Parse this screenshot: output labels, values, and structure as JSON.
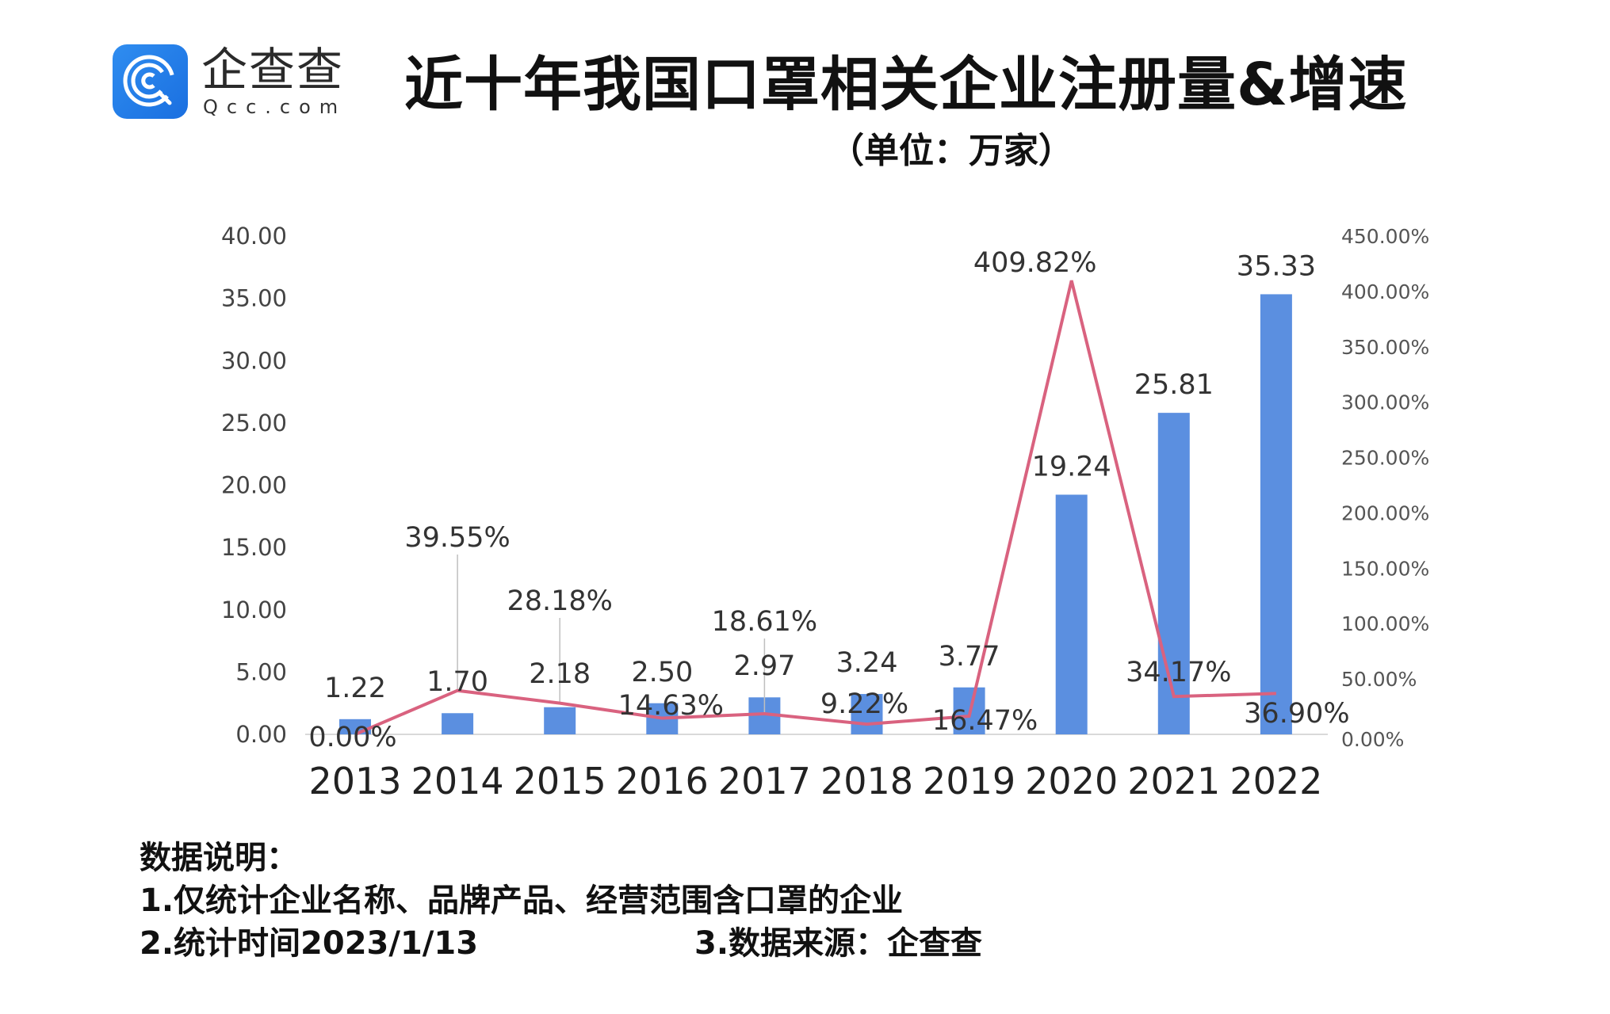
{
  "brand": {
    "name_cn": "企查查",
    "domain": "Qcc.com",
    "logo_icon": "qcc-logo-icon",
    "color": "#1f7ee8"
  },
  "header": {
    "title": "近十年我国口罩相关企业注册量&增速",
    "subtitle": "（单位：万家）"
  },
  "chart_data": {
    "type": "bar+line",
    "title": "近十年我国口罩相关企业注册量&增速",
    "subtitle": "（单位：万家）",
    "categories": [
      "2013",
      "2014",
      "2015",
      "2016",
      "2017",
      "2018",
      "2019",
      "2020",
      "2021",
      "2022"
    ],
    "series": [
      {
        "name": "注册量（万家）",
        "type": "bar",
        "axis": "left",
        "color": "#5b8fe0",
        "values": [
          1.22,
          1.7,
          2.18,
          2.5,
          2.97,
          3.24,
          3.77,
          19.24,
          25.81,
          35.33
        ],
        "labels": [
          "1.22",
          "1.70",
          "2.18",
          "2.50",
          "2.97",
          "3.24",
          "3.77",
          "19.24",
          "25.81",
          "35.33"
        ]
      },
      {
        "name": "增速",
        "type": "line",
        "axis": "right",
        "color": "#d9627f",
        "values": [
          0.0,
          39.55,
          28.18,
          14.63,
          18.61,
          9.22,
          16.47,
          409.82,
          34.17,
          36.9
        ],
        "labels": [
          "0.00%",
          "39.55%",
          "28.18%",
          "14.63%",
          "18.61%",
          "9.22%",
          "16.47%",
          "409.82%",
          "34.17%",
          "36.90%"
        ]
      }
    ],
    "y_left": {
      "range": [
        0,
        40
      ],
      "ticks": [
        "0.00",
        "5.00",
        "10.00",
        "15.00",
        "20.00",
        "25.00",
        "30.00",
        "35.00",
        "40.00"
      ]
    },
    "y_right": {
      "range": [
        0,
        450
      ],
      "ticks": [
        "0.00%",
        "50.00%",
        "100.00%",
        "150.00%",
        "200.00%",
        "250.00%",
        "300.00%",
        "350.00%",
        "400.00%",
        "450.00%"
      ]
    },
    "grid": false,
    "legend": "none"
  },
  "notes": {
    "heading": "数据说明：",
    "line1": "1.仅统计企业名称、品牌产品、经营范围含口罩的企业",
    "line2": "2.统计时间2023/1/13",
    "line3": "3.数据来源：企查查"
  }
}
